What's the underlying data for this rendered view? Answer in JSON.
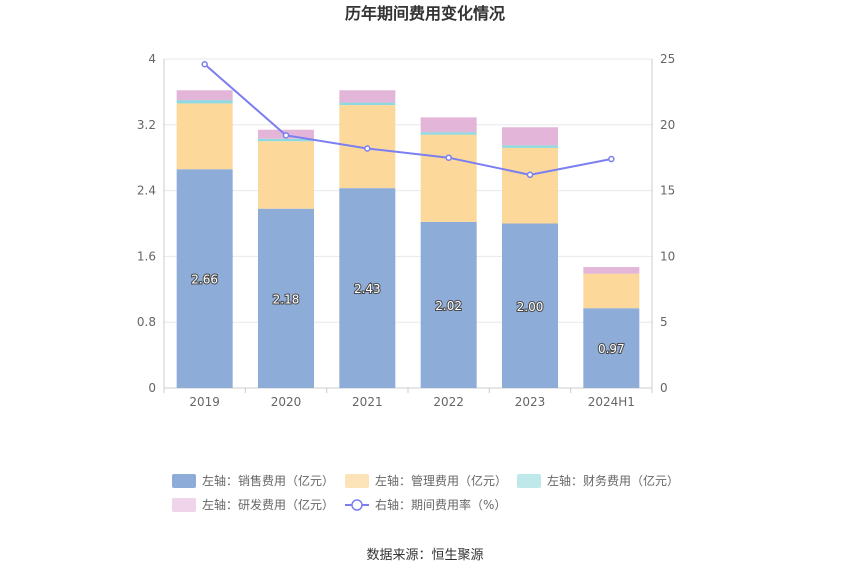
{
  "chart_data": {
    "type": "bar",
    "stacked": true,
    "title": "历年期间费用变化情况",
    "categories": [
      "2019",
      "2020",
      "2021",
      "2022",
      "2023",
      "2024H1"
    ],
    "left_axis": {
      "min": 0,
      "max": 4,
      "ticks": [
        "0",
        "0.8",
        "1.6",
        "2.4",
        "3.2",
        "4"
      ],
      "tick_values": [
        0,
        0.8,
        1.6,
        2.4,
        3.2,
        4
      ]
    },
    "right_axis": {
      "min": 0,
      "max": 25,
      "ticks": [
        "0",
        "5",
        "10",
        "15",
        "20",
        "25"
      ],
      "tick_values": [
        0,
        5,
        10,
        15,
        20,
        25
      ]
    },
    "series": [
      {
        "name": "左轴：销售费用（亿元）",
        "axis": "left",
        "type": "bar",
        "color": "#8eacd8",
        "values": [
          2.66,
          2.18,
          2.43,
          2.02,
          2.0,
          0.97
        ],
        "labels": [
          "2.66",
          "2.18",
          "2.43",
          "2.02",
          "2.00",
          "0.97"
        ]
      },
      {
        "name": "左轴：管理费用（亿元）",
        "axis": "left",
        "type": "bar",
        "color": "#fdd89b",
        "values": [
          0.8,
          0.82,
          1.01,
          1.06,
          0.92,
          0.42
        ]
      },
      {
        "name": "左轴：财务费用（亿元）",
        "axis": "left",
        "type": "bar",
        "color": "#8ed8de",
        "values": [
          0.04,
          0.03,
          0.03,
          0.03,
          0.03,
          0.0
        ]
      },
      {
        "name": "左轴：研发费用（亿元）",
        "axis": "left",
        "type": "bar",
        "color": "#e3b5d8",
        "values": [
          0.12,
          0.11,
          0.15,
          0.18,
          0.22,
          0.08
        ]
      },
      {
        "name": "右轴：期间费用率（%）",
        "axis": "right",
        "type": "line",
        "color": "#7b7ff0",
        "values": [
          24.6,
          19.2,
          18.2,
          17.5,
          16.2,
          17.4
        ]
      }
    ],
    "legend": [
      {
        "label": "左轴：销售费用（亿元）",
        "color": "#8eacd8",
        "shape": "rect"
      },
      {
        "label": "左轴：管理费用（亿元）",
        "color": "#fde3b8",
        "shape": "rect"
      },
      {
        "label": "左轴：财务费用（亿元）",
        "color": "#bfe8eb",
        "shape": "rect"
      },
      {
        "label": "左轴：研发费用（亿元）",
        "color": "#f0d4ea",
        "shape": "rect"
      },
      {
        "label": "右轴：期间费用率（%）",
        "color": "#7b7ff0",
        "shape": "line"
      }
    ],
    "legend_position": "bottom",
    "grid": true
  },
  "source": "数据来源：恒生聚源"
}
